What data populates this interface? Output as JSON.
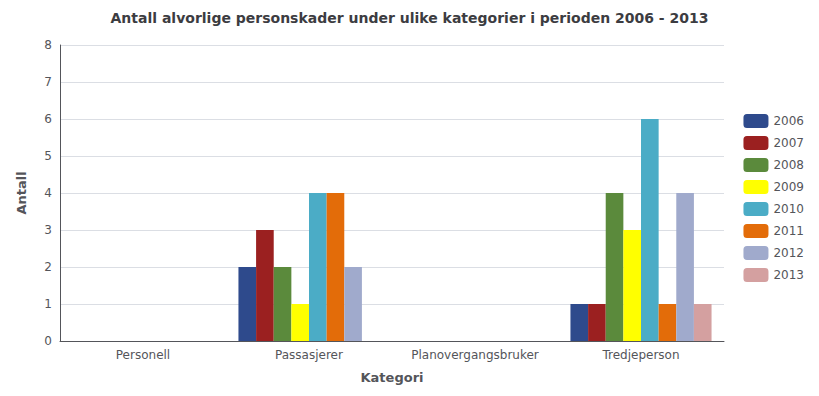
{
  "chart_data": {
    "type": "bar",
    "title": "Antall alvorlige personskader under ulike kategorier i perioden 2006 - 2013",
    "xlabel": "Kategori",
    "ylabel": "Antall",
    "categories": [
      "Personell",
      "Passasjerer",
      "Planovergangsbruker",
      "Tredjeperson"
    ],
    "series": [
      {
        "name": "2006",
        "color": "#2E4A8C",
        "values": [
          0,
          2,
          0,
          1
        ]
      },
      {
        "name": "2007",
        "color": "#9B2020",
        "values": [
          0,
          3,
          0,
          1
        ]
      },
      {
        "name": "2008",
        "color": "#5B8A3C",
        "values": [
          0,
          2,
          0,
          4
        ]
      },
      {
        "name": "2009",
        "color": "#FFFF00",
        "values": [
          0,
          1,
          0,
          3
        ]
      },
      {
        "name": "2010",
        "color": "#4BACC6",
        "values": [
          0,
          4,
          0,
          6
        ]
      },
      {
        "name": "2011",
        "color": "#E36C09",
        "values": [
          0,
          4,
          0,
          1
        ]
      },
      {
        "name": "2012",
        "color": "#A0AACC",
        "values": [
          0,
          2,
          0,
          4
        ]
      },
      {
        "name": "2013",
        "color": "#D4A0A0",
        "values": [
          0,
          0,
          0,
          1
        ]
      }
    ],
    "ylim": [
      0,
      8
    ],
    "yticks": [
      0,
      1,
      2,
      3,
      4,
      5,
      6,
      7,
      8
    ],
    "grid": true,
    "legend": "right"
  }
}
